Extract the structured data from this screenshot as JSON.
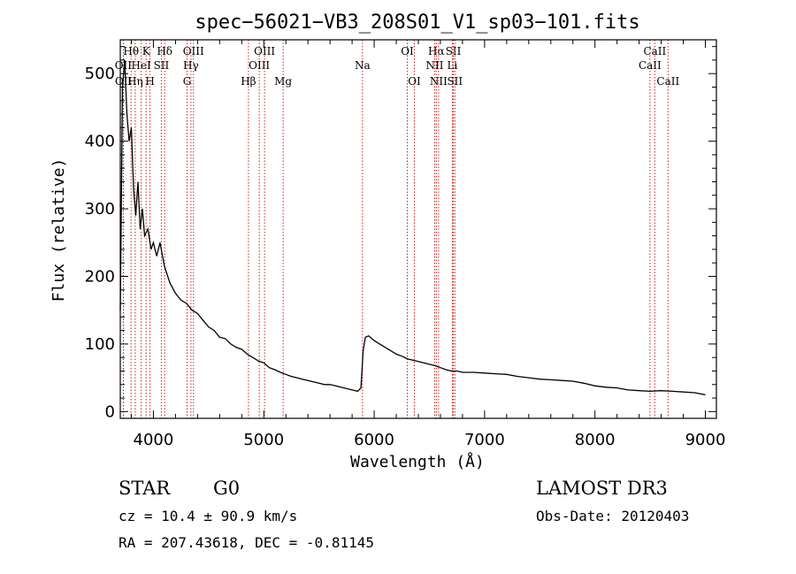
{
  "chart_data": {
    "type": "line",
    "title": "spec−56021−VB3_208S01_V1_sp03−101.fits",
    "xlabel": "Wavelength (Å)",
    "ylabel": "Flux (relative)",
    "xlim": [
      3700,
      9100
    ],
    "ylim": [
      -10,
      550
    ],
    "xticks": [
      4000,
      5000,
      6000,
      7000,
      8000,
      9000
    ],
    "xtick_labels": [
      "4000",
      "5000",
      "6000",
      "7000",
      "8000",
      "9000"
    ],
    "yticks": [
      0,
      100,
      200,
      300,
      400,
      500
    ],
    "ytick_labels": [
      "0",
      "100",
      "200",
      "300",
      "400",
      "500"
    ],
    "series": [
      {
        "name": "flux",
        "x": [
          3700,
          3720,
          3740,
          3760,
          3780,
          3800,
          3820,
          3840,
          3860,
          3880,
          3900,
          3920,
          3950,
          3980,
          4000,
          4030,
          4060,
          4100,
          4150,
          4200,
          4250,
          4300,
          4350,
          4400,
          4450,
          4500,
          4550,
          4600,
          4650,
          4700,
          4750,
          4800,
          4850,
          4900,
          4950,
          5000,
          5050,
          5100,
          5150,
          5200,
          5250,
          5300,
          5350,
          5400,
          5450,
          5500,
          5550,
          5600,
          5650,
          5700,
          5750,
          5800,
          5850,
          5880,
          5900,
          5920,
          5950,
          6000,
          6050,
          6100,
          6150,
          6200,
          6250,
          6300,
          6350,
          6400,
          6450,
          6500,
          6550,
          6600,
          6650,
          6700,
          6750,
          6800,
          6900,
          7000,
          7100,
          7200,
          7300,
          7400,
          7500,
          7600,
          7700,
          7800,
          7900,
          8000,
          8100,
          8200,
          8300,
          8400,
          8500,
          8600,
          8700,
          8800,
          8900,
          9000
        ],
        "y": [
          150,
          480,
          520,
          440,
          400,
          420,
          330,
          290,
          340,
          270,
          300,
          260,
          270,
          240,
          250,
          230,
          250,
          215,
          190,
          175,
          165,
          160,
          150,
          145,
          135,
          125,
          120,
          110,
          108,
          100,
          95,
          92,
          85,
          80,
          75,
          72,
          65,
          62,
          58,
          55,
          52,
          50,
          48,
          46,
          44,
          42,
          40,
          40,
          38,
          36,
          34,
          32,
          30,
          35,
          90,
          110,
          112,
          105,
          100,
          95,
          90,
          85,
          82,
          78,
          76,
          74,
          72,
          70,
          68,
          65,
          62,
          60,
          60,
          58,
          58,
          57,
          56,
          55,
          52,
          50,
          48,
          47,
          46,
          45,
          42,
          38,
          36,
          35,
          32,
          31,
          30,
          31,
          30,
          29,
          28,
          25
        ]
      }
    ],
    "spectral_lines": [
      {
        "name": "Hθ",
        "wave": 3798,
        "row": 1
      },
      {
        "name": "OII",
        "wave": 3727,
        "row": 2
      },
      {
        "name": "OII",
        "wave": 3729,
        "row": 3
      },
      {
        "name": "HeI",
        "wave": 3889,
        "row": 2
      },
      {
        "name": "Hη",
        "wave": 3835,
        "row": 3
      },
      {
        "name": "K",
        "wave": 3934,
        "row": 1
      },
      {
        "name": "H",
        "wave": 3969,
        "row": 3
      },
      {
        "name": "SII",
        "wave": 4072,
        "row": 2
      },
      {
        "name": "Hδ",
        "wave": 4102,
        "row": 1
      },
      {
        "name": "OIII",
        "wave": 4363,
        "row": 1
      },
      {
        "name": "Hγ",
        "wave": 4340,
        "row": 2
      },
      {
        "name": "G",
        "wave": 4305,
        "row": 3
      },
      {
        "name": "Hβ",
        "wave": 4861,
        "row": 3
      },
      {
        "name": "OIII",
        "wave": 4959,
        "row": 2
      },
      {
        "name": "OIII",
        "wave": 5007,
        "row": 1
      },
      {
        "name": "Mg",
        "wave": 5175,
        "row": 3
      },
      {
        "name": "Na",
        "wave": 5894,
        "row": 2
      },
      {
        "name": "OI",
        "wave": 6300,
        "row": 1
      },
      {
        "name": "OI",
        "wave": 6364,
        "row": 3
      },
      {
        "name": "Hα",
        "wave": 6563,
        "row": 1
      },
      {
        "name": "NII",
        "wave": 6548,
        "row": 2
      },
      {
        "name": "NII",
        "wave": 6583,
        "row": 3
      },
      {
        "name": "SII",
        "wave": 6717,
        "row": 1
      },
      {
        "name": "Li",
        "wave": 6708,
        "row": 2
      },
      {
        "name": "SII",
        "wave": 6731,
        "row": 3
      },
      {
        "name": "CaII",
        "wave": 8542,
        "row": 1
      },
      {
        "name": "CaII",
        "wave": 8498,
        "row": 2
      },
      {
        "name": "CaII",
        "wave": 8662,
        "row": 3
      }
    ]
  },
  "info": {
    "class_label": "STAR",
    "subclass_label": "G0",
    "survey_label": "LAMOST DR3",
    "cz_text": "cz = 10.4 ± 90.9 km/s",
    "obs_date_text": "Obs-Date: 20120403",
    "radec_text": "RA = 207.43618, DEC =  -0.81145"
  },
  "colors": {
    "line_marker": "#cc2222",
    "flux": "#000000"
  }
}
